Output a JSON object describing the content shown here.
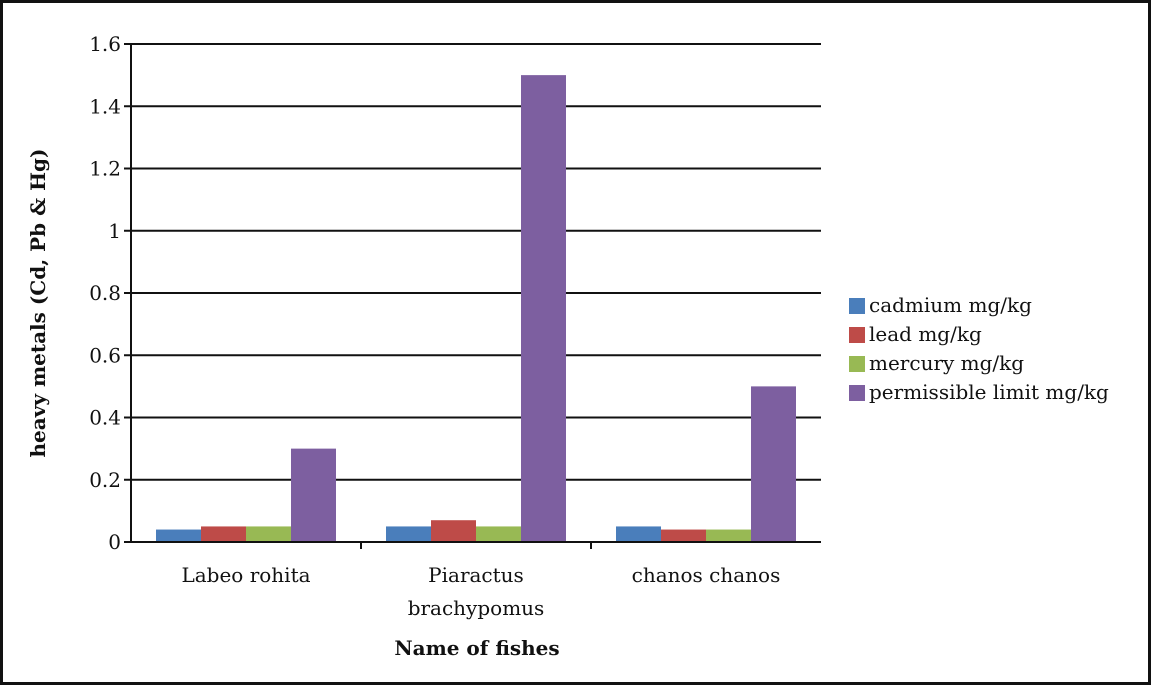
{
  "chart_data": {
    "type": "bar",
    "title": "",
    "xlabel": "Name of fishes",
    "ylabel": "heavy metals (Cd, Pb & Hg)",
    "categories": [
      [
        "Labeo rohita"
      ],
      [
        "Piaractus",
        "brachypomus"
      ],
      [
        "chanos chanos"
      ]
    ],
    "series": [
      {
        "name": "cadmium mg/kg",
        "color": "#4a7ebb",
        "values": [
          0.04,
          0.05,
          0.05
        ]
      },
      {
        "name": "lead mg/kg",
        "color": "#be4b48",
        "values": [
          0.05,
          0.07,
          0.04
        ]
      },
      {
        "name": "mercury mg/kg",
        "color": "#98b954",
        "values": [
          0.05,
          0.05,
          0.04
        ]
      },
      {
        "name": "permissible limit mg/kg",
        "color": "#7d5fa0",
        "values": [
          0.3,
          1.5,
          0.5
        ]
      }
    ],
    "ylim": [
      0,
      1.6
    ],
    "yticks": [
      "0",
      "0.2",
      "0.4",
      "0.6",
      "0.8",
      "1",
      "1.2",
      "1.4",
      "1.6"
    ],
    "grid": true,
    "legend_position": "right"
  }
}
